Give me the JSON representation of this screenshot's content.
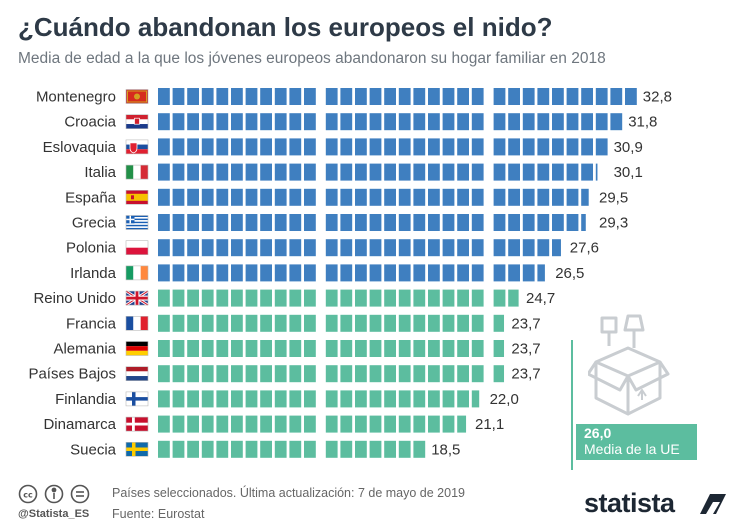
{
  "header": {
    "title": "¿Cuándo abandonan los europeos el nido?",
    "subtitle": "Media de edad a la que los jóvenes europeos abandonaron su hogar familiar en 2018"
  },
  "chart_data": {
    "type": "bar",
    "title": "¿Cuándo abandonan los europeos el nido?",
    "subtitle": "Media de edad a la que los jóvenes europeos abandonaron su hogar familiar en 2018",
    "categories": [
      "Montenegro",
      "Croacia",
      "Eslovaquia",
      "Italia",
      "España",
      "Grecia",
      "Polonia",
      "Irlanda",
      "Reino Unido",
      "Francia",
      "Alemania",
      "Países Bajos",
      "Finlandia",
      "Dinamarca",
      "Suecia"
    ],
    "values": [
      32.8,
      31.8,
      30.9,
      30.1,
      29.5,
      29.3,
      27.6,
      26.5,
      24.7,
      23.7,
      23.7,
      23.7,
      22.0,
      21.1,
      18.5
    ],
    "value_labels": [
      "32,8",
      "31,8",
      "30,9",
      "30,1",
      "29,5",
      "29,3",
      "27,6",
      "26,5",
      "24,7",
      "23,7",
      "23,7",
      "23,7",
      "22,0",
      "21,1",
      "18,5"
    ],
    "flags": [
      "montenegro",
      "croatia",
      "slovakia",
      "italy",
      "spain",
      "greece",
      "poland",
      "ireland",
      "uk",
      "france",
      "germany",
      "netherlands",
      "finland",
      "denmark",
      "sweden"
    ],
    "reference": {
      "value": 26.0,
      "value_label": "26,0",
      "label": "Media de la UE"
    },
    "xlim": [
      0,
      33
    ],
    "colors": {
      "above": "#3f7fc0",
      "below": "#5cbd9f"
    }
  },
  "footer": {
    "note": "Países seleccionados. Última actualización: 7 de mayo de 2019",
    "source": "Fuente: Eurostat",
    "handle": "@Statista_ES",
    "brand": "statista"
  }
}
